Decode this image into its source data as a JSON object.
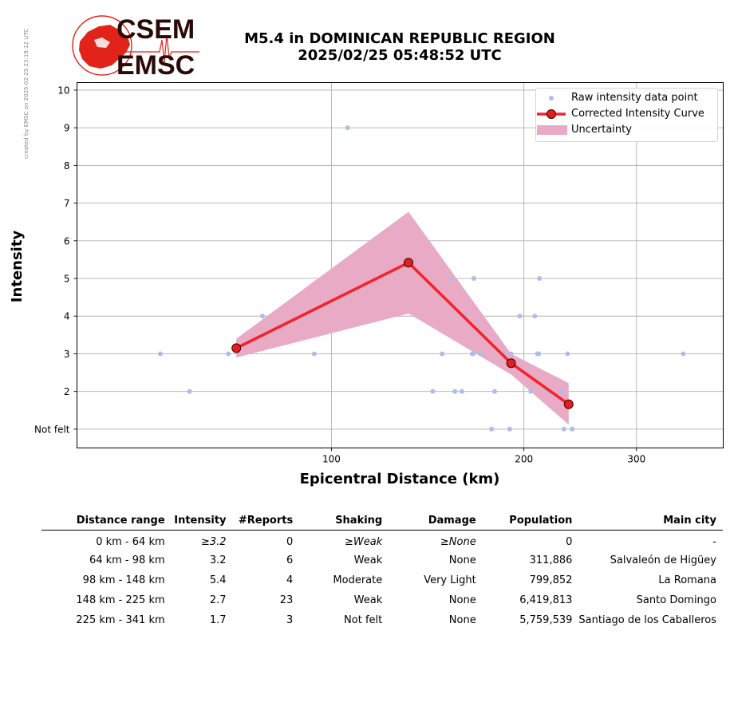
{
  "header": {
    "logo_text_top": "CSEM",
    "logo_text_bottom": "EMSC",
    "title_line1": "M5.4 in DOMINICAN REPUBLIC REGION",
    "title_line2": "2025/02/25 05:48:52 UTC",
    "created_note": "created by EMSC on 2025-02-25 23:19:12 UTC"
  },
  "colors": {
    "raw_points": "#aebde8",
    "curve": "#f5222a",
    "curve_marker": "#e41e1e",
    "uncertainty": "#e8aac5",
    "logo_red": "#e2231a",
    "logo_dark": "#2a0a06"
  },
  "chart_data": {
    "type": "line",
    "xlabel": "Epicentral Distance (km)",
    "ylabel": "Intensity",
    "x_scale": "log",
    "xlim": [
      40,
      410
    ],
    "ylim": [
      0.5,
      10.2
    ],
    "x_ticks": [
      100,
      200,
      300
    ],
    "x_tick_labels": [
      "100",
      "200",
      "300"
    ],
    "y_ticks": [
      1,
      2,
      3,
      4,
      5,
      6,
      7,
      8,
      9,
      10
    ],
    "y_tick_labels": [
      "Not felt",
      "2",
      "3",
      "4",
      "5",
      "6",
      "7",
      "8",
      "9",
      "10"
    ],
    "grid": true,
    "legend": [
      "Raw intensity data point",
      "Corrected Intensity Curve",
      "Uncertainty"
    ],
    "legend_position": "top-right",
    "series": [
      {
        "name": "Raw intensity data point",
        "style": "scatter",
        "points": [
          [
            54,
            3
          ],
          [
            60,
            2
          ],
          [
            69,
            3
          ],
          [
            78,
            4
          ],
          [
            94,
            3
          ],
          [
            106,
            9
          ],
          [
            144,
            2
          ],
          [
            149,
            3
          ],
          [
            154,
            5
          ],
          [
            156,
            2
          ],
          [
            160,
            2
          ],
          [
            162,
            4
          ],
          [
            166,
            3
          ],
          [
            166.5,
            3
          ],
          [
            167,
            5
          ],
          [
            171,
            3
          ],
          [
            178,
            1
          ],
          [
            180,
            2
          ],
          [
            186,
            3
          ],
          [
            190,
            1
          ],
          [
            191,
            3
          ],
          [
            197,
            4
          ],
          [
            205,
            2
          ],
          [
            208,
            4
          ],
          [
            210,
            3
          ],
          [
            211,
            3
          ],
          [
            211.5,
            5
          ],
          [
            218,
            2
          ],
          [
            229,
            2
          ],
          [
            231,
            1
          ],
          [
            234,
            3
          ],
          [
            238,
            1
          ],
          [
            355,
            3
          ]
        ]
      },
      {
        "name": "Corrected Intensity Curve",
        "style": "line",
        "x": [
          71,
          132,
          191,
          235
        ],
        "y": [
          3.15,
          5.42,
          2.75,
          1.66
        ]
      },
      {
        "name": "Uncertainty",
        "style": "band",
        "x": [
          71,
          132,
          191,
          235
        ],
        "lower": [
          2.9,
          4.07,
          2.45,
          1.12
        ],
        "upper": [
          3.4,
          6.77,
          3.0,
          2.22
        ]
      }
    ]
  },
  "summary_table": {
    "headers": [
      "Distance range",
      "Intensity",
      "#Reports",
      "Shaking",
      "Damage",
      "Population",
      "Main city"
    ],
    "rows": [
      {
        "distance": "0 km -   64 km",
        "intensity": "≥3.2",
        "reports": "0",
        "shaking": "≥Weak",
        "damage": "≥None",
        "population": "0",
        "city": "-"
      },
      {
        "distance": "64 km -   98 km",
        "intensity": "3.2",
        "reports": "6",
        "shaking": "Weak",
        "damage": "None",
        "population": "311,886",
        "city": "Salvaleón de Higüey"
      },
      {
        "distance": "98 km -  148 km",
        "intensity": "5.4",
        "reports": "4",
        "shaking": "Moderate",
        "damage": "Very Light",
        "population": "799,852",
        "city": "La Romana"
      },
      {
        "distance": "148 km -  225 km",
        "intensity": "2.7",
        "reports": "23",
        "shaking": "Weak",
        "damage": "None",
        "population": "6,419,813",
        "city": "Santo Domingo"
      },
      {
        "distance": "225 km -  341 km",
        "intensity": "1.7",
        "reports": "3",
        "shaking": "Not felt",
        "damage": "None",
        "population": "5,759,539",
        "city": "Santiago de los Caballeros"
      }
    ]
  }
}
